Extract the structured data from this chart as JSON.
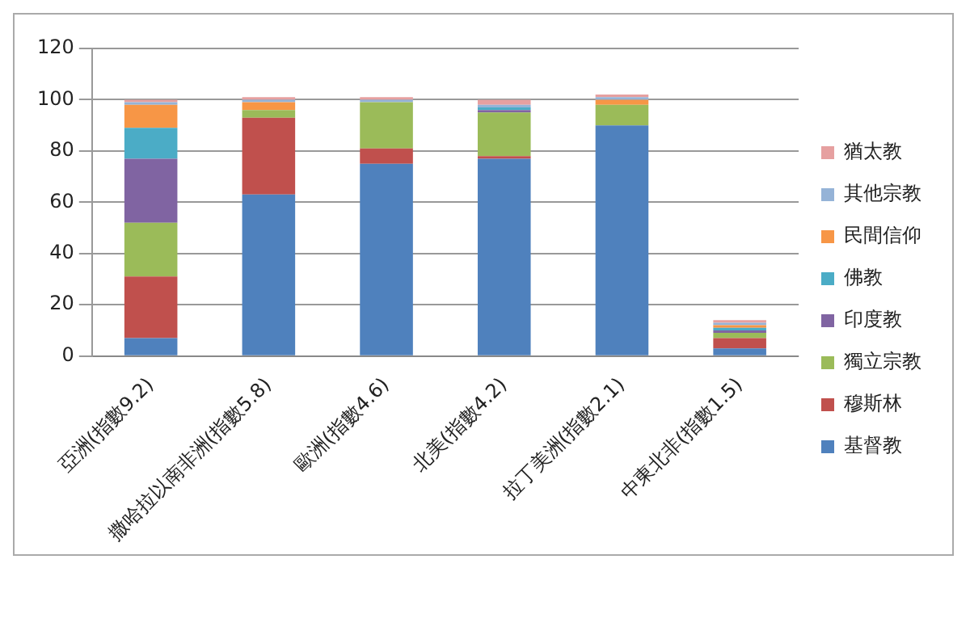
{
  "chart_data": {
    "type": "bar",
    "stacked": true,
    "categories": [
      "亞洲(指數9.2)",
      "撒哈拉以南非洲(指數5.8)",
      "歐洲(指數4.6)",
      "北美(指數4.2)",
      "拉丁美洲(指數2.1)",
      "中東北非(指數1.5)"
    ],
    "series": [
      {
        "name": "基督教",
        "color": "#4f81bd",
        "values": [
          7,
          63,
          75,
          77,
          90,
          3
        ]
      },
      {
        "name": "穆斯林",
        "color": "#c0504d",
        "values": [
          24,
          30,
          6,
          1,
          0,
          4
        ]
      },
      {
        "name": "獨立宗教",
        "color": "#9bbb59",
        "values": [
          21,
          3,
          18,
          17,
          8,
          2
        ]
      },
      {
        "name": "印度教",
        "color": "#8064a2",
        "values": [
          25,
          0,
          0,
          1,
          0,
          1
        ]
      },
      {
        "name": "佛教",
        "color": "#4bacc6",
        "values": [
          12,
          0,
          0,
          1,
          0,
          1
        ]
      },
      {
        "name": "民間信仰",
        "color": "#f79646",
        "values": [
          9,
          3,
          0,
          0,
          2,
          1
        ]
      },
      {
        "name": "其他宗教",
        "color": "#95b3d7",
        "values": [
          1,
          1,
          1,
          1,
          1,
          1
        ]
      },
      {
        "name": "猶太教",
        "color": "#e6a0a0",
        "values": [
          1,
          1,
          1,
          2,
          1,
          1
        ]
      }
    ],
    "ylim": [
      0,
      120
    ],
    "yticks": [
      0,
      20,
      40,
      60,
      80,
      100,
      120
    ],
    "grid": "y",
    "legend": "right"
  }
}
